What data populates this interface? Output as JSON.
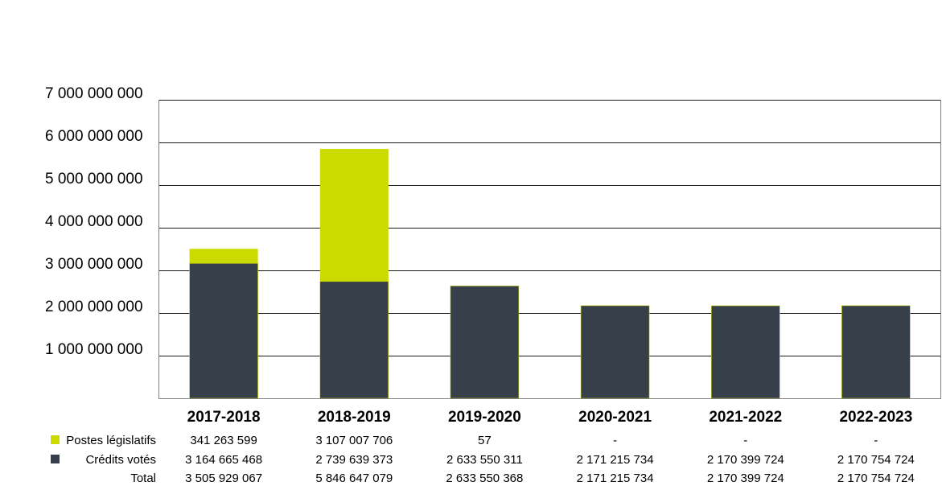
{
  "chart_data": {
    "type": "bar",
    "stacked": true,
    "categories": [
      "2017-2018",
      "2018-2019",
      "2019-2020",
      "2020-2021",
      "2021-2022",
      "2022-2023"
    ],
    "series": [
      {
        "name": "Crédits votés",
        "color": "#37404a",
        "values": [
          3164665468,
          2739639373,
          2633550311,
          2171215734,
          2170399724,
          2170754724
        ],
        "table_values": [
          "3 164 665 468",
          "2 739 639 373",
          "2 633 550 311",
          "2 171 215 734",
          "2 170 399 724",
          "2 170 754 724"
        ]
      },
      {
        "name": "Postes législatifs",
        "color": "#cbdb00",
        "values": [
          341263599,
          3107007706,
          57,
          0,
          0,
          0
        ],
        "table_values": [
          "341 263 599",
          "3 107 007 706",
          "57",
          "-",
          "-",
          "-"
        ]
      }
    ],
    "total": {
      "label": "Total",
      "table_values": [
        "3 505 929 067",
        "5 846 647 079",
        "2 633 550 368",
        "2 171 215 734",
        "2 170 399 724",
        "2 170 754 724"
      ]
    },
    "ylim": [
      0,
      7000000000
    ],
    "yticks": [
      1000000000,
      2000000000,
      3000000000,
      4000000000,
      5000000000,
      6000000000,
      7000000000
    ],
    "ytick_labels": [
      "1 000 000 000",
      "2 000 000 000",
      "3 000 000 000",
      "4 000 000 000",
      "5 000 000 000",
      "6 000 000 000",
      "7 000 000 000"
    ],
    "grid": true,
    "legend": "data-table-left",
    "title": "",
    "xlabel": "",
    "ylabel": ""
  }
}
